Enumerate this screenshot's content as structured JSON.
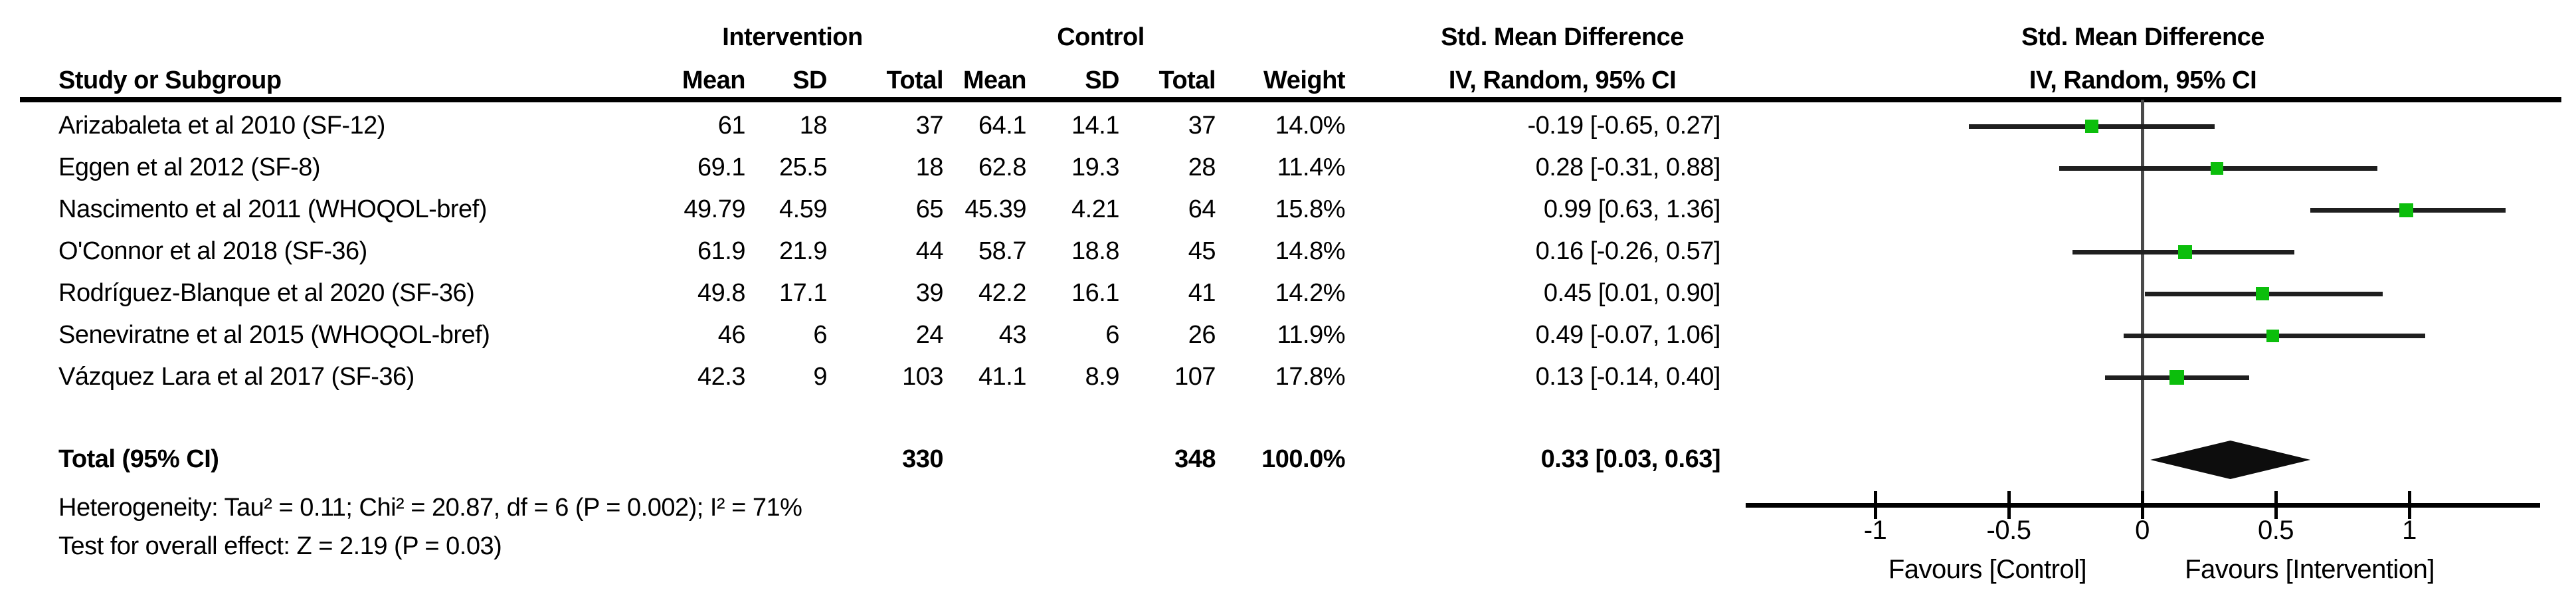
{
  "chart_data": {
    "type": "forest",
    "effect_measure": "Std. Mean Difference",
    "method_label": "IV, Random, 95% CI",
    "columns": {
      "study": "Study or Subgroup",
      "group1": "Intervention",
      "group2": "Control",
      "sub": [
        "Mean",
        "SD",
        "Total",
        "Mean",
        "SD",
        "Total"
      ],
      "weight": "Weight"
    },
    "studies": [
      {
        "name": "Arizabaleta et al 2010 (SF-12)",
        "int_mean": "61",
        "int_sd": "18",
        "int_total": "37",
        "ctrl_mean": "64.1",
        "ctrl_sd": "14.1",
        "ctrl_total": "37",
        "weight": "14.0%",
        "smd_ci": "-0.19 [-0.65, 0.27]",
        "est": -0.19,
        "lo": -0.65,
        "hi": 0.27,
        "weight_pct": 14.0
      },
      {
        "name": "Eggen et al 2012 (SF-8)",
        "int_mean": "69.1",
        "int_sd": "25.5",
        "int_total": "18",
        "ctrl_mean": "62.8",
        "ctrl_sd": "19.3",
        "ctrl_total": "28",
        "weight": "11.4%",
        "smd_ci": "0.28 [-0.31, 0.88]",
        "est": 0.28,
        "lo": -0.31,
        "hi": 0.88,
        "weight_pct": 11.4
      },
      {
        "name": "Nascimento et al 2011 (WHOQOL-bref)",
        "int_mean": "49.79",
        "int_sd": "4.59",
        "int_total": "65",
        "ctrl_mean": "45.39",
        "ctrl_sd": "4.21",
        "ctrl_total": "64",
        "weight": "15.8%",
        "smd_ci": "0.99 [0.63, 1.36]",
        "est": 0.99,
        "lo": 0.63,
        "hi": 1.36,
        "weight_pct": 15.8
      },
      {
        "name": "O'Connor et al 2018 (SF-36)",
        "int_mean": "61.9",
        "int_sd": "21.9",
        "int_total": "44",
        "ctrl_mean": "58.7",
        "ctrl_sd": "18.8",
        "ctrl_total": "45",
        "weight": "14.8%",
        "smd_ci": "0.16 [-0.26, 0.57]",
        "est": 0.16,
        "lo": -0.26,
        "hi": 0.57,
        "weight_pct": 14.8
      },
      {
        "name": "Rodríguez-Blanque et al 2020 (SF-36)",
        "int_mean": "49.8",
        "int_sd": "17.1",
        "int_total": "39",
        "ctrl_mean": "42.2",
        "ctrl_sd": "16.1",
        "ctrl_total": "41",
        "weight": "14.2%",
        "smd_ci": "0.45 [0.01, 0.90]",
        "est": 0.45,
        "lo": 0.01,
        "hi": 0.9,
        "weight_pct": 14.2
      },
      {
        "name": "Seneviratne et al 2015 (WHOQOL-bref)",
        "int_mean": "46",
        "int_sd": "6",
        "int_total": "24",
        "ctrl_mean": "43",
        "ctrl_sd": "6",
        "ctrl_total": "26",
        "weight": "11.9%",
        "smd_ci": "0.49 [-0.07, 1.06]",
        "est": 0.49,
        "lo": -0.07,
        "hi": 1.06,
        "weight_pct": 11.9
      },
      {
        "name": "Vázquez Lara et al 2017 (SF-36)",
        "int_mean": "42.3",
        "int_sd": "9",
        "int_total": "103",
        "ctrl_mean": "41.1",
        "ctrl_sd": "8.9",
        "ctrl_total": "107",
        "weight": "17.8%",
        "smd_ci": "0.13 [-0.14, 0.40]",
        "est": 0.13,
        "lo": -0.14,
        "hi": 0.4,
        "weight_pct": 17.8
      }
    ],
    "total": {
      "label": "Total (95% CI)",
      "int_total": "330",
      "ctrl_total": "348",
      "weight": "100.0%",
      "smd_ci": "0.33 [0.03, 0.63]",
      "est": 0.33,
      "lo": 0.03,
      "hi": 0.63
    },
    "heterogeneity": "Heterogeneity: Tau² = 0.11; Chi² = 20.87, df = 6 (P = 0.002); I² = 71%",
    "overall_effect": "Test for overall effect: Z = 2.19 (P = 0.03)",
    "axis": {
      "min": -1.5,
      "max": 1.5,
      "ticks": [
        -1,
        -0.5,
        0,
        0.5,
        1
      ],
      "tick_labels": [
        "-1",
        "-0.5",
        "0",
        "0.5",
        "1"
      ],
      "left_label": "Favours [Control]",
      "right_label": "Favours [Intervention]",
      "grid": false
    },
    "colors": {
      "marker": "#0CBE0C",
      "diamond": "#0d0d0d",
      "ci_line": "#1f1f1f",
      "zero_line": "#4a4a4a",
      "axis": "#000000",
      "header_rule": "#000000"
    }
  }
}
